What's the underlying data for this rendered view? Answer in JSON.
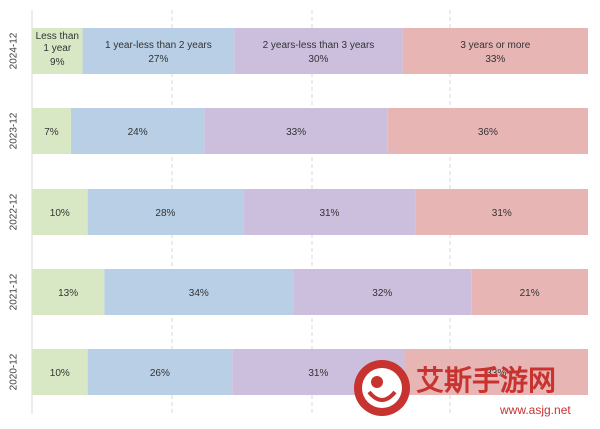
{
  "chart_data": {
    "type": "bar",
    "orientation": "horizontal",
    "stacked": "percent",
    "categories": [
      "2024-12",
      "2023-12",
      "2022-12",
      "2021-12",
      "2020-12"
    ],
    "series": [
      {
        "name": "Less than 1 year",
        "values": [
          9,
          7,
          10,
          13,
          10
        ],
        "color": "#d9e8c4"
      },
      {
        "name": "1 year-less than 2 years",
        "values": [
          27,
          24,
          28,
          34,
          26
        ],
        "color": "#b8cfe6"
      },
      {
        "name": "2 years-less than 3 years",
        "values": [
          30,
          33,
          31,
          32,
          31
        ],
        "color": "#cbbfdd"
      },
      {
        "name": "3 years or more",
        "values": [
          33,
          36,
          31,
          21,
          33
        ],
        "color": "#e8b5b5"
      }
    ],
    "xlim": [
      0,
      100
    ],
    "grid": true,
    "legend": "in-bar labels on first bar",
    "value_suffix": "%"
  },
  "watermark": {
    "text": "艾斯手游网",
    "url": "www.asjg.net"
  }
}
